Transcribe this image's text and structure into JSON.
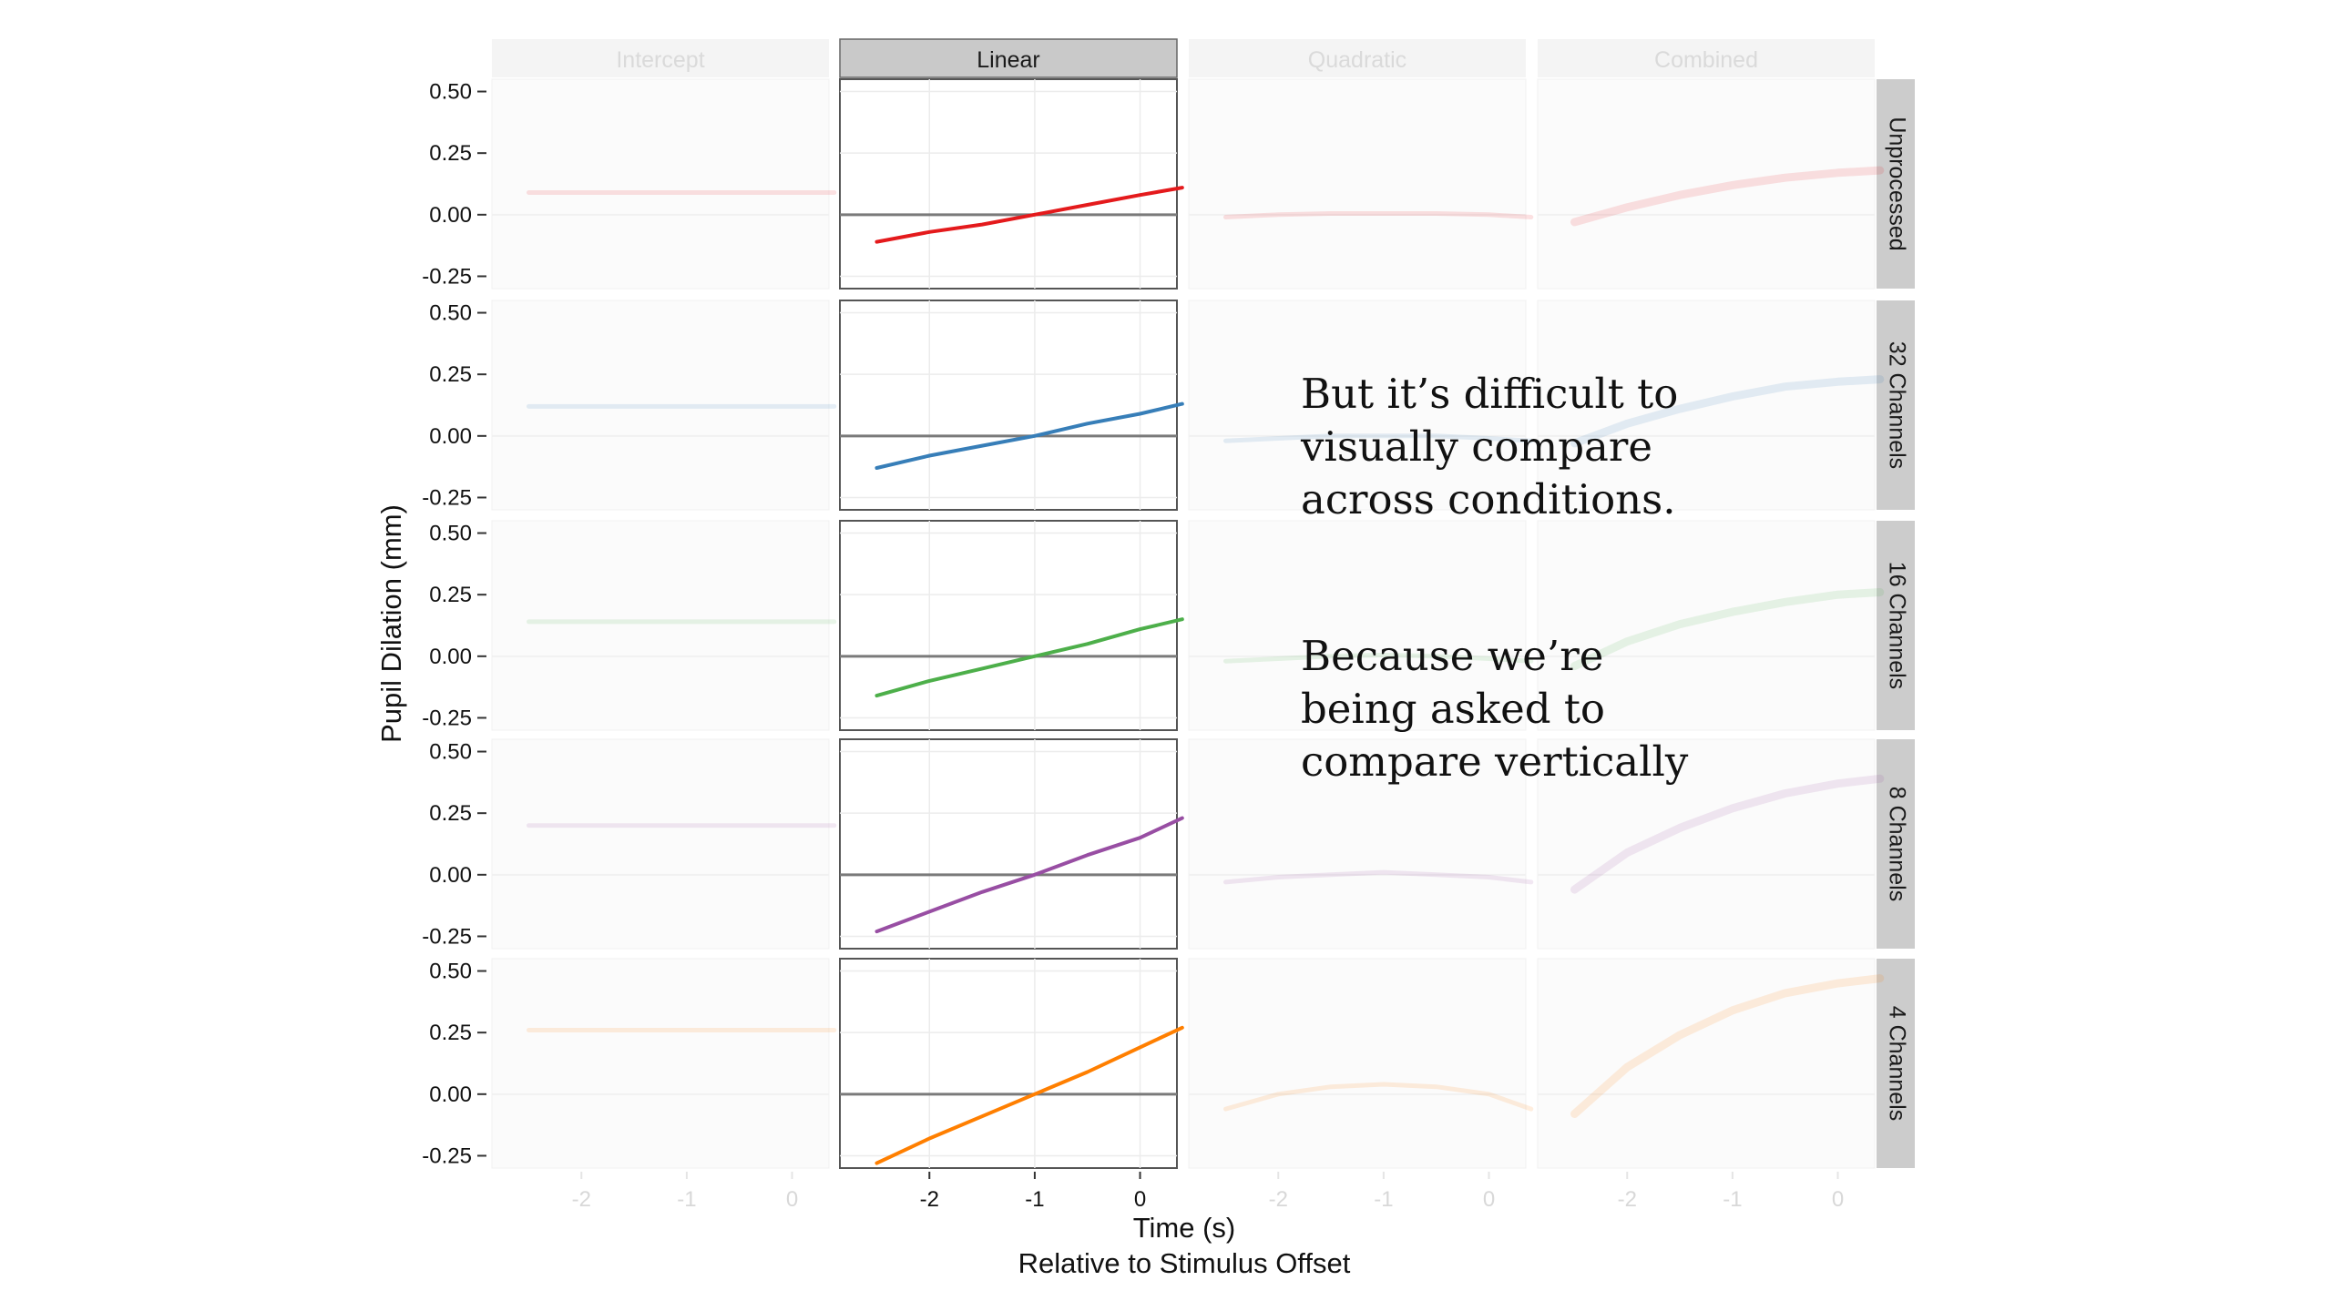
{
  "chart_data": {
    "type": "line",
    "columns": [
      "Intercept",
      "Linear",
      "Quadratic",
      "Combined"
    ],
    "highlighted_column": "Linear",
    "rows": [
      {
        "name": "Unprocessed",
        "color": "#e41a1c"
      },
      {
        "name": "32 Channels",
        "color": "#377eb8"
      },
      {
        "name": "16 Channels",
        "color": "#4daf4a"
      },
      {
        "name": "8 Channels",
        "color": "#984ea3"
      },
      {
        "name": "4 Channels",
        "color": "#ff7f00"
      }
    ],
    "x_ticks": [
      -2,
      -1,
      0
    ],
    "x_tick_labels": [
      "-2",
      "-1",
      "0"
    ],
    "xlim": [
      -2.85,
      0.35
    ],
    "y_ticks": [
      0.5,
      0.25,
      0.0,
      -0.25
    ],
    "y_tick_labels": [
      "0.50",
      "0.25",
      "0.00",
      "-0.25"
    ],
    "ylim": [
      -0.3,
      0.55
    ],
    "xlabel": "Time (s)",
    "xlabel_sub": "Relative to Stimulus Offset",
    "ylabel": "Pupil Dilation (mm)",
    "reference_line_y": 0,
    "curves_x": [
      -2.5,
      -2.0,
      -1.5,
      -1.0,
      -0.5,
      0.0,
      0.4
    ],
    "series": {
      "Intercept": [
        [
          0.09,
          0.09,
          0.09,
          0.09,
          0.09,
          0.09,
          0.09
        ],
        [
          0.12,
          0.12,
          0.12,
          0.12,
          0.12,
          0.12,
          0.12
        ],
        [
          0.14,
          0.14,
          0.14,
          0.14,
          0.14,
          0.14,
          0.14
        ],
        [
          0.2,
          0.2,
          0.2,
          0.2,
          0.2,
          0.2,
          0.2
        ],
        [
          0.26,
          0.26,
          0.26,
          0.26,
          0.26,
          0.26,
          0.26
        ]
      ],
      "Linear": [
        [
          -0.11,
          -0.07,
          -0.04,
          0.0,
          0.04,
          0.08,
          0.11
        ],
        [
          -0.13,
          -0.08,
          -0.04,
          0.0,
          0.05,
          0.09,
          0.13
        ],
        [
          -0.16,
          -0.1,
          -0.05,
          0.0,
          0.05,
          0.11,
          0.15
        ],
        [
          -0.23,
          -0.15,
          -0.07,
          0.0,
          0.08,
          0.15,
          0.23
        ],
        [
          -0.28,
          -0.18,
          -0.09,
          0.0,
          0.09,
          0.19,
          0.27
        ]
      ],
      "Quadratic": [
        [
          -0.01,
          0.0,
          0.005,
          0.005,
          0.005,
          0.0,
          -0.01
        ],
        [
          -0.02,
          -0.01,
          0.0,
          0.0,
          0.0,
          -0.01,
          -0.02
        ],
        [
          -0.02,
          -0.01,
          0.0,
          0.005,
          0.0,
          -0.01,
          -0.02
        ],
        [
          -0.03,
          -0.01,
          0.0,
          0.01,
          0.0,
          -0.01,
          -0.03
        ],
        [
          -0.06,
          0.0,
          0.03,
          0.04,
          0.03,
          0.0,
          -0.06
        ]
      ],
      "Combined": [
        [
          -0.03,
          0.03,
          0.08,
          0.12,
          0.15,
          0.17,
          0.18
        ],
        [
          -0.03,
          0.05,
          0.11,
          0.16,
          0.2,
          0.22,
          0.23
        ],
        [
          -0.04,
          0.06,
          0.13,
          0.18,
          0.22,
          0.25,
          0.26
        ],
        [
          -0.06,
          0.09,
          0.19,
          0.27,
          0.33,
          0.37,
          0.39
        ],
        [
          -0.08,
          0.11,
          0.24,
          0.34,
          0.41,
          0.45,
          0.47
        ]
      ]
    }
  },
  "annotations": {
    "note_1": "But it’s difficult to\nvisually compare\nacross conditions.",
    "note_2": "Because we’re\nbeing asked to\ncompare vertically"
  }
}
